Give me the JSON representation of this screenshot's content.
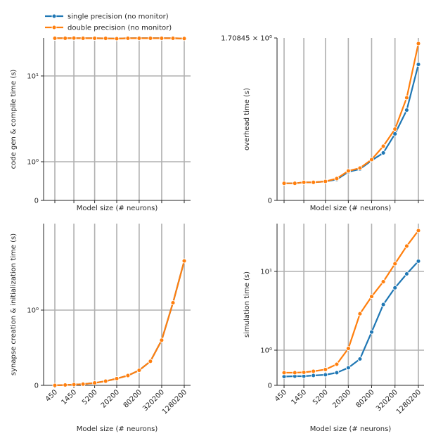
{
  "legend": [
    {
      "label": "single precision (no monitor)",
      "color": "#1f77b4"
    },
    {
      "label": "double precision (no monitor)",
      "color": "#ff7f0e"
    }
  ],
  "x_ticks": [
    "450",
    "1450",
    "5200",
    "20200",
    "80200",
    "320200",
    "1280200"
  ],
  "x_all": [
    450,
    850,
    1450,
    2550,
    5200,
    10200,
    20200,
    40200,
    80200,
    160200,
    320200,
    640200,
    1280200
  ],
  "chart_data": [
    {
      "id": "top-left",
      "type": "line",
      "xlabel": "Model size (# neurons)",
      "ylabel": "code gen & compile time (s)",
      "ytick_labels": {
        "zero": "0",
        "one": "10⁰",
        "ten": "10¹"
      },
      "show_xtick_labels": false,
      "x_scale": "log",
      "y_scale": "symlog",
      "series": [
        {
          "name": "single precision (no monitor)",
          "color": "#1f77b4",
          "values": [
            27.5,
            27.5,
            27.5,
            27.5,
            27.5,
            27.4,
            27.3,
            27.5,
            27.6,
            27.6,
            27.6,
            27.5,
            27.3
          ]
        },
        {
          "name": "double precision (no monitor)",
          "color": "#ff7f0e",
          "values": [
            27.5,
            27.5,
            27.6,
            27.5,
            27.5,
            27.4,
            27.2,
            27.5,
            27.5,
            27.5,
            27.5,
            27.5,
            27.3
          ]
        }
      ]
    },
    {
      "id": "top-right",
      "type": "line",
      "xlabel": "Model size (# neurons)",
      "ylabel": "overhead time (s)",
      "ytick_labels": {
        "zero": "0",
        "top": "1.70845 × 10⁰"
      },
      "show_xtick_labels": false,
      "x_scale": "log",
      "y_scale": "linear",
      "ylim": [
        0,
        1.70845
      ],
      "series": [
        {
          "name": "single precision (no monitor)",
          "color": "#1f77b4",
          "values": [
            0.18,
            0.18,
            0.19,
            0.19,
            0.2,
            0.22,
            0.3,
            0.33,
            0.42,
            0.5,
            0.7,
            0.95,
            1.43
          ]
        },
        {
          "name": "double precision (no monitor)",
          "color": "#ff7f0e",
          "values": [
            0.18,
            0.18,
            0.19,
            0.19,
            0.2,
            0.23,
            0.31,
            0.34,
            0.43,
            0.57,
            0.75,
            1.08,
            1.65
          ]
        }
      ]
    },
    {
      "id": "bottom-left",
      "type": "line",
      "xlabel": "Model size (# neurons)",
      "ylabel": "synapse creation & initialization time (s)",
      "ytick_labels": {
        "zero": "0",
        "one": "10⁰"
      },
      "show_xtick_labels": true,
      "x_scale": "log",
      "y_scale": "symlog",
      "series": [
        {
          "name": "single precision (no monitor)",
          "color": "#1f77b4",
          "values": [
            0.0,
            0.005,
            0.01,
            0.016,
            0.032,
            0.055,
            0.09,
            0.13,
            0.2,
            0.32,
            0.6,
            1.25,
            4.5
          ]
        },
        {
          "name": "double precision (no monitor)",
          "color": "#ff7f0e",
          "values": [
            0.0,
            0.005,
            0.01,
            0.016,
            0.032,
            0.055,
            0.09,
            0.13,
            0.2,
            0.32,
            0.6,
            1.25,
            4.5
          ]
        }
      ]
    },
    {
      "id": "bottom-right",
      "type": "line",
      "xlabel": "Model size (# neurons)",
      "ylabel": "simulation time (s)",
      "ytick_labels": {
        "zero": "0",
        "one": "10⁰",
        "ten": "10¹"
      },
      "show_xtick_labels": true,
      "x_scale": "log",
      "y_scale": "symlog",
      "series": [
        {
          "name": "single precision (no monitor)",
          "color": "#1f77b4",
          "values": [
            0.25,
            0.26,
            0.26,
            0.28,
            0.3,
            0.36,
            0.5,
            0.75,
            1.7,
            3.8,
            6.2,
            9.3,
            13.5
          ]
        },
        {
          "name": "double precision (no monitor)",
          "color": "#ff7f0e",
          "values": [
            0.36,
            0.36,
            0.37,
            0.4,
            0.45,
            0.6,
            1.05,
            2.9,
            4.8,
            7.4,
            12.5,
            21,
            33
          ]
        }
      ]
    }
  ]
}
